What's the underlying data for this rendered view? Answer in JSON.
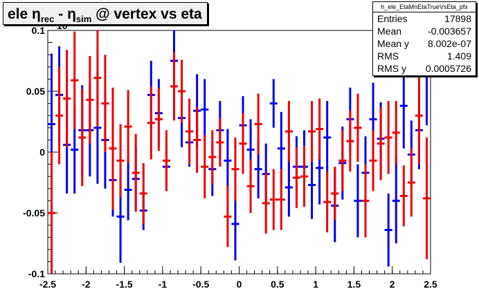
{
  "title": {
    "prefix": "ele ",
    "eta1": "η",
    "sub1": "rec",
    "mid": " - ",
    "eta2": "η",
    "sub2": "sim",
    "suffix": " @ vertex vs eta"
  },
  "multiplier_label": "10",
  "stats": {
    "name": "h_ele_EtaMnEtaTrueVsEta_pfx",
    "rows": [
      {
        "label": "Entries",
        "value": "17898"
      },
      {
        "label": "Mean",
        "value": "-0.003657"
      },
      {
        "label": "Mean y",
        "value": "8.002e-07"
      },
      {
        "label": "RMS",
        "value": "1.409"
      },
      {
        "label": "RMS y",
        "value": "0.0005726"
      }
    ]
  },
  "chart_data": {
    "type": "scatter",
    "xlim": [
      -2.5,
      2.5
    ],
    "ylim": [
      -0.1,
      0.1
    ],
    "x_ticks": [
      "-2.5",
      "-2",
      "-1.5",
      "-1",
      "-0.5",
      "0",
      "0.5",
      "1",
      "1.5",
      "2",
      "2.5"
    ],
    "y_ticks": [
      "-0.1",
      "-0.05",
      "0",
      "0.05",
      "0.1"
    ],
    "bin_half_width": 0.05,
    "series": [
      {
        "color": "#0000ee",
        "points": [
          {
            "x": -2.45,
            "y": 0.023,
            "e": 0.058
          },
          {
            "x": -2.35,
            "y": 0.047,
            "e": 0.04
          },
          {
            "x": -2.25,
            "y": 0.006,
            "e": 0.04
          },
          {
            "x": -2.15,
            "y": 0.002,
            "e": 0.036
          },
          {
            "x": -2.05,
            "y": 0.018,
            "e": 0.037
          },
          {
            "x": -1.95,
            "y": 0.018,
            "e": 0.038
          },
          {
            "x": -1.85,
            "y": 0.02,
            "e": 0.046
          },
          {
            "x": -1.75,
            "y": 0.01,
            "e": 0.04
          },
          {
            "x": -1.65,
            "y": -0.023,
            "e": 0.03
          },
          {
            "x": -1.55,
            "y": -0.053,
            "e": 0.038
          },
          {
            "x": -1.45,
            "y": -0.031,
            "e": 0.025
          },
          {
            "x": -1.35,
            "y": -0.022,
            "e": 0.026
          },
          {
            "x": -1.25,
            "y": -0.048,
            "e": 0.016
          },
          {
            "x": -1.15,
            "y": 0.047,
            "e": 0.028
          },
          {
            "x": -1.05,
            "y": 0.032,
            "e": 0.028
          },
          {
            "x": -0.95,
            "y": -0.012,
            "e": 0.02
          },
          {
            "x": -0.85,
            "y": 0.075,
            "e": 0.04
          },
          {
            "x": -0.75,
            "y": 0.028,
            "e": 0.024
          },
          {
            "x": -0.65,
            "y": 0.008,
            "e": 0.02
          },
          {
            "x": -0.55,
            "y": 0.034,
            "e": 0.03
          },
          {
            "x": -0.45,
            "y": 0.035,
            "e": 0.025
          },
          {
            "x": -0.35,
            "y": -0.014,
            "e": 0.022
          },
          {
            "x": -0.25,
            "y": 0.018,
            "e": 0.024
          },
          {
            "x": -0.15,
            "y": -0.007,
            "e": 0.026
          },
          {
            "x": -0.05,
            "y": -0.059,
            "e": 0.03
          },
          {
            "x": 0.05,
            "y": 0.022,
            "e": 0.024
          },
          {
            "x": 0.15,
            "y": 0.002,
            "e": 0.025
          },
          {
            "x": 0.25,
            "y": -0.014,
            "e": 0.024
          },
          {
            "x": 0.35,
            "y": -0.018,
            "e": 0.025
          },
          {
            "x": 0.45,
            "y": 0.04,
            "e": 0.02
          },
          {
            "x": 0.55,
            "y": 0.003,
            "e": 0.03
          },
          {
            "x": 0.65,
            "y": -0.029,
            "e": 0.024
          },
          {
            "x": 0.75,
            "y": -0.012,
            "e": 0.025
          },
          {
            "x": 0.85,
            "y": -0.012,
            "e": 0.03
          },
          {
            "x": 0.95,
            "y": -0.027,
            "e": 0.028
          },
          {
            "x": 1.05,
            "y": -0.013,
            "e": 0.03
          },
          {
            "x": 1.15,
            "y": 0.012,
            "e": 0.03
          },
          {
            "x": 1.25,
            "y": -0.044,
            "e": 0.03
          },
          {
            "x": 1.35,
            "y": -0.009,
            "e": 0.03
          },
          {
            "x": 1.45,
            "y": 0.027,
            "e": 0.026
          },
          {
            "x": 1.55,
            "y": -0.04,
            "e": 0.03
          },
          {
            "x": 1.65,
            "y": -0.017,
            "e": 0.03
          },
          {
            "x": 1.75,
            "y": 0.027,
            "e": 0.03
          },
          {
            "x": 1.85,
            "y": 0.011,
            "e": 0.03
          },
          {
            "x": 1.95,
            "y": -0.064,
            "e": 0.03
          },
          {
            "x": 2.05,
            "y": -0.04,
            "e": 0.035
          },
          {
            "x": 2.15,
            "y": 0.038,
            "e": 0.035
          },
          {
            "x": 2.25,
            "y": -0.002,
            "e": 0.028
          },
          {
            "x": 2.35,
            "y": 0.018,
            "e": 0.032
          },
          {
            "x": 2.45,
            "y": 0.072,
            "e": 0.05
          }
        ]
      },
      {
        "color": "#ee0000",
        "points": [
          {
            "x": -2.45,
            "y": -0.05,
            "e": 0.05
          },
          {
            "x": -2.35,
            "y": 0.03,
            "e": 0.04
          },
          {
            "x": -2.25,
            "y": 0.044,
            "e": 0.04
          },
          {
            "x": -2.15,
            "y": 0.059,
            "e": 0.04
          },
          {
            "x": -2.05,
            "y": 0.012,
            "e": 0.04
          },
          {
            "x": -1.95,
            "y": 0.043,
            "e": 0.036
          },
          {
            "x": -1.85,
            "y": 0.061,
            "e": 0.04
          },
          {
            "x": -1.75,
            "y": 0.04,
            "e": 0.04
          },
          {
            "x": -1.65,
            "y": 0.003,
            "e": 0.05
          },
          {
            "x": -1.55,
            "y": -0.007,
            "e": 0.03
          },
          {
            "x": -1.45,
            "y": 0.021,
            "e": 0.03
          },
          {
            "x": -1.35,
            "y": -0.017,
            "e": 0.032
          },
          {
            "x": -1.25,
            "y": -0.034,
            "e": 0.025
          },
          {
            "x": -1.15,
            "y": 0.024,
            "e": 0.03
          },
          {
            "x": -1.05,
            "y": 0.027,
            "e": 0.026
          },
          {
            "x": -0.95,
            "y": -0.007,
            "e": 0.025
          },
          {
            "x": -0.85,
            "y": 0.054,
            "e": 0.028
          },
          {
            "x": -0.75,
            "y": 0.05,
            "e": 0.026
          },
          {
            "x": -0.65,
            "y": 0.017,
            "e": 0.027
          },
          {
            "x": -0.55,
            "y": 0.01,
            "e": 0.027
          },
          {
            "x": -0.45,
            "y": -0.012,
            "e": 0.026
          },
          {
            "x": -0.35,
            "y": -0.004,
            "e": 0.022
          },
          {
            "x": -0.25,
            "y": 0.008,
            "e": 0.02
          },
          {
            "x": -0.15,
            "y": -0.053,
            "e": 0.025
          },
          {
            "x": -0.05,
            "y": -0.014,
            "e": 0.026
          },
          {
            "x": 0.05,
            "y": 0.007,
            "e": 0.025
          },
          {
            "x": 0.15,
            "y": -0.028,
            "e": 0.022
          },
          {
            "x": 0.25,
            "y": 0.023,
            "e": 0.025
          },
          {
            "x": 0.35,
            "y": -0.042,
            "e": 0.025
          },
          {
            "x": 0.45,
            "y": -0.039,
            "e": 0.025
          },
          {
            "x": 0.55,
            "y": -0.039,
            "e": 0.025
          },
          {
            "x": 0.65,
            "y": 0.017,
            "e": 0.025
          },
          {
            "x": 0.75,
            "y": -0.021,
            "e": 0.025
          },
          {
            "x": 0.85,
            "y": -0.02,
            "e": 0.025
          },
          {
            "x": 0.95,
            "y": 0.017,
            "e": 0.025
          },
          {
            "x": 1.05,
            "y": 0.019,
            "e": 0.025
          },
          {
            "x": 1.15,
            "y": -0.041,
            "e": 0.025
          },
          {
            "x": 1.25,
            "y": -0.034,
            "e": 0.022
          },
          {
            "x": 1.35,
            "y": -0.007,
            "e": 0.025
          },
          {
            "x": 1.45,
            "y": 0.009,
            "e": 0.025
          },
          {
            "x": 1.55,
            "y": 0.02,
            "e": 0.028
          },
          {
            "x": 1.65,
            "y": -0.04,
            "e": 0.03
          },
          {
            "x": 1.75,
            "y": -0.007,
            "e": 0.025
          },
          {
            "x": 1.85,
            "y": 0.007,
            "e": 0.03
          },
          {
            "x": 1.95,
            "y": 0.012,
            "e": 0.03
          },
          {
            "x": 2.05,
            "y": 0.016,
            "e": 0.026
          },
          {
            "x": 2.15,
            "y": -0.036,
            "e": 0.025
          },
          {
            "x": 2.25,
            "y": -0.025,
            "e": 0.028
          },
          {
            "x": 2.35,
            "y": 0.03,
            "e": 0.04
          },
          {
            "x": 2.45,
            "y": -0.038,
            "e": 0.05
          }
        ]
      }
    ]
  }
}
